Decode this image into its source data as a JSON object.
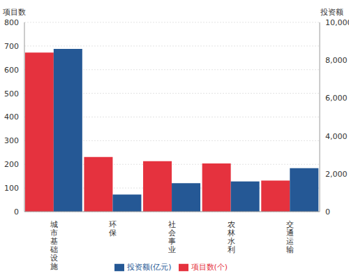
{
  "chart_data": {
    "type": "bar",
    "y_label": "项目数",
    "y2_label": "投资额",
    "categories": [
      "城市基础设施",
      "环保",
      "社会事业",
      "农林水利",
      "交通运输"
    ],
    "series": [
      {
        "name": "项目数(个)",
        "color": "#e5323e",
        "values": [
          672,
          231,
          213,
          204,
          131
        ],
        "axis": "y"
      },
      {
        "name": "投资额(亿元)",
        "color": "#255895",
        "values": [
          8600,
          900,
          1500,
          1600,
          2300
        ],
        "axis": "y2"
      }
    ],
    "ylim": [
      0,
      800
    ],
    "yticks": [
      0,
      100,
      200,
      300,
      400,
      500,
      600,
      700,
      800
    ],
    "y2lim": [
      0,
      10000
    ],
    "y2ticks": [
      0,
      {
        "value": 2000,
        "label": "2,000"
      },
      {
        "value": 4000,
        "label": "4,000"
      },
      {
        "value": 6000,
        "label": "6,000"
      },
      {
        "value": 8000,
        "label": "8,000"
      },
      {
        "value": 10000,
        "label": "10,000"
      }
    ],
    "grid": true,
    "legend": "bottom"
  }
}
